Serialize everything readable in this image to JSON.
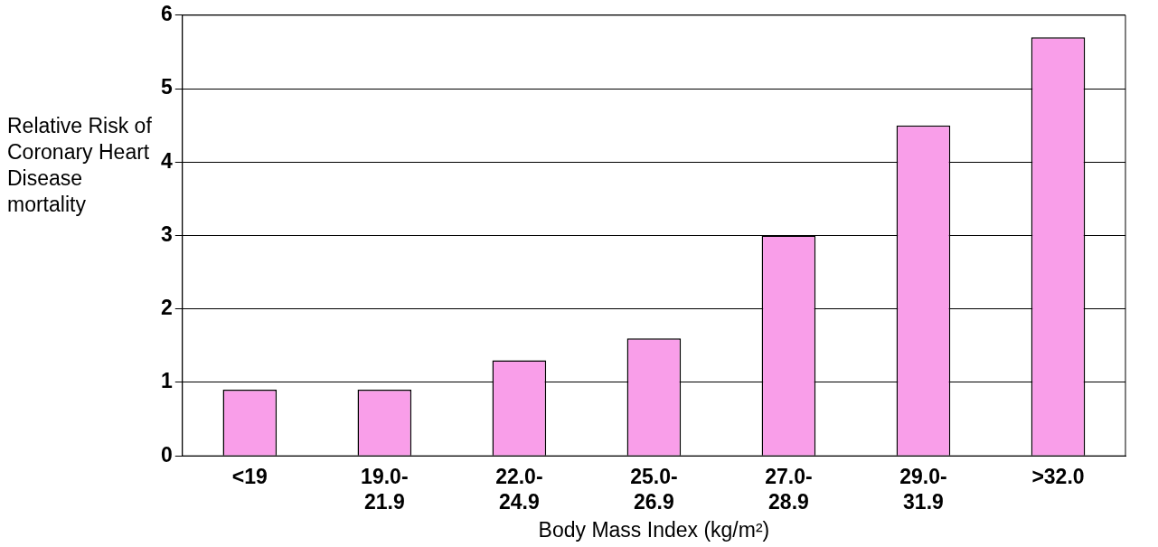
{
  "chart_data": {
    "type": "bar",
    "categories": [
      "<19",
      "19.0-21.9",
      "22.0-24.9",
      "25.0-26.9",
      "27.0-28.9",
      "29.0-31.9",
      ">32.0"
    ],
    "values": [
      0.9,
      0.9,
      1.3,
      1.6,
      3.0,
      4.5,
      5.7
    ],
    "color": "#f99ee9",
    "xlabel": "Body Mass Index (kg/m²)",
    "ylabel": "Relative Risk of Coronary Heart Disease mortality",
    "ylim": [
      0,
      6
    ],
    "yticks": [
      0,
      1,
      2,
      3,
      4,
      5,
      6
    ],
    "grid": "y",
    "legend": false
  }
}
